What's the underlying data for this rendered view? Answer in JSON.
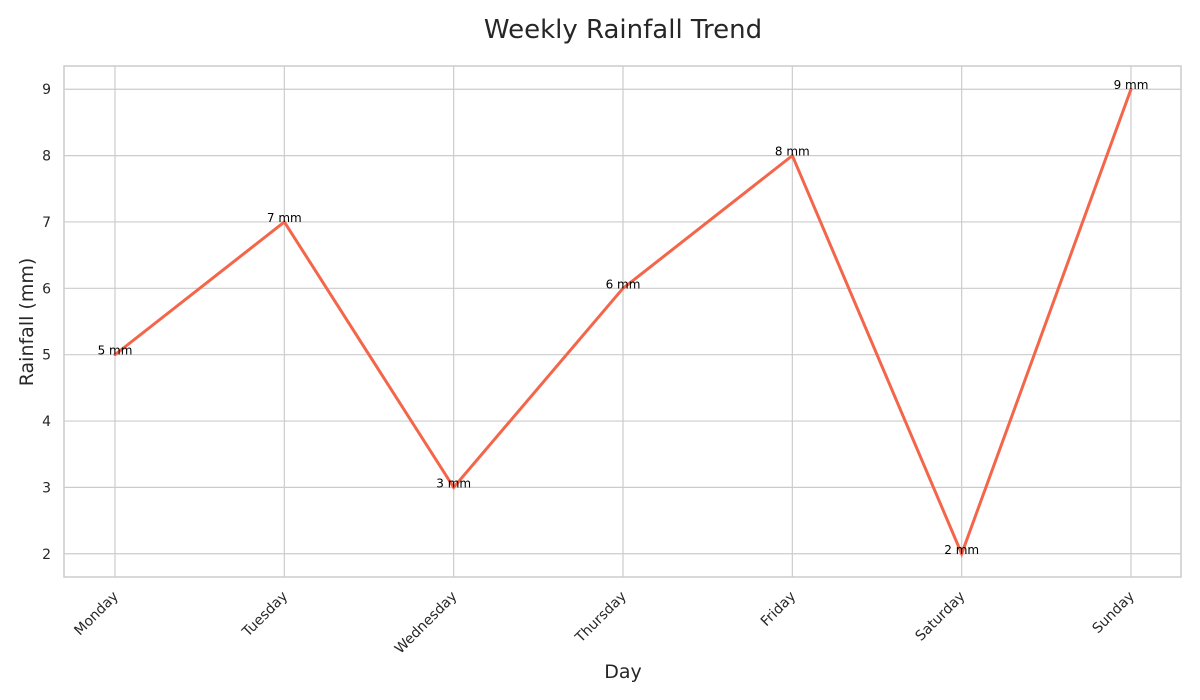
{
  "chart_data": {
    "type": "line",
    "title": "Weekly Rainfall Trend",
    "xlabel": "Day",
    "ylabel": "Rainfall (mm)",
    "categories": [
      "Monday",
      "Tuesday",
      "Wednesday",
      "Thursday",
      "Friday",
      "Saturday",
      "Sunday"
    ],
    "values": [
      5,
      7,
      3,
      6,
      8,
      2,
      9
    ],
    "data_labels": [
      "5 mm",
      "7 mm",
      "3 mm",
      "6 mm",
      "8 mm",
      "2 mm",
      "9 mm"
    ],
    "ylim": [
      1.65,
      9.35
    ],
    "yticks": [
      2,
      3,
      4,
      5,
      6,
      7,
      8,
      9
    ],
    "grid": true,
    "line_color": "#f4664a"
  }
}
